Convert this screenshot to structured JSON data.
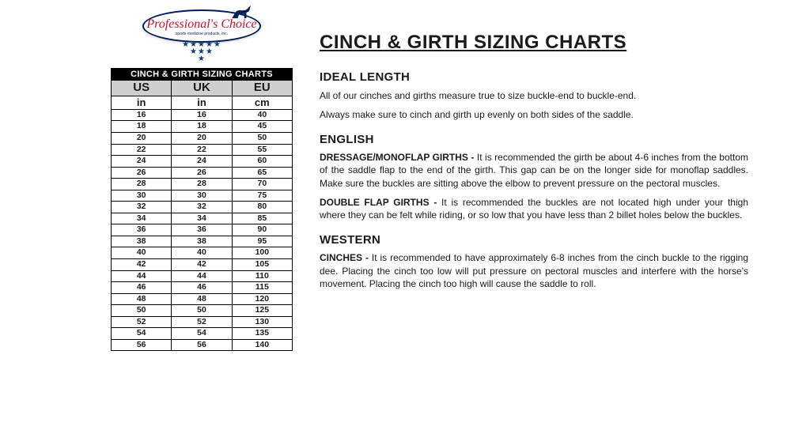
{
  "logo": {
    "brand": "Professional's Choice",
    "tagline": "sports medicine products, inc.",
    "brand_color": "#c8102e",
    "outline_color": "#001e5a"
  },
  "table": {
    "title": "CINCH & GIRTH SIZING CHARTS",
    "regions": [
      "US",
      "UK",
      "EU"
    ],
    "units": [
      "in",
      "in",
      "cm"
    ],
    "header_bg": "#000000",
    "header_fg": "#ffffff",
    "region_bg": "#cfcfcf",
    "rows": [
      [
        16,
        16,
        40
      ],
      [
        18,
        18,
        45
      ],
      [
        20,
        20,
        50
      ],
      [
        22,
        22,
        55
      ],
      [
        24,
        24,
        60
      ],
      [
        26,
        26,
        65
      ],
      [
        28,
        28,
        70
      ],
      [
        30,
        30,
        75
      ],
      [
        32,
        32,
        80
      ],
      [
        34,
        34,
        85
      ],
      [
        36,
        36,
        90
      ],
      [
        38,
        38,
        95
      ],
      [
        40,
        40,
        100
      ],
      [
        42,
        42,
        105
      ],
      [
        44,
        44,
        110
      ],
      [
        46,
        46,
        115
      ],
      [
        48,
        48,
        120
      ],
      [
        50,
        50,
        125
      ],
      [
        52,
        52,
        130
      ],
      [
        54,
        54,
        135
      ],
      [
        56,
        56,
        140
      ]
    ]
  },
  "content": {
    "title": "CINCH & GIRTH SIZING CHARTS",
    "ideal": {
      "heading": "IDEAL LENGTH",
      "p1": "All of our cinches and girths measure true to size buckle-end to buckle-end.",
      "p2": "Always make sure to cinch and girth up evenly on both sides of the saddle."
    },
    "english": {
      "heading": "ENGLISH",
      "dressage_lead": "DRESSAGE/MONOFLAP GIRTHS - ",
      "dressage_body": "It is recommended the girth be about 4-6 inches from the bottom of the saddle flap to the end of the girth.  This gap can be  on the longer side for monoflap saddles. Make sure the buckles are sitting above the elbow to prevent pressure on the pectoral muscles.",
      "double_lead": "DOUBLE FLAP GIRTHS - ",
      "double_body": "It is recommended the buckles are not located high under your thigh where they can be felt while riding, or so low that you have less than 2 billet holes below the buckles."
    },
    "western": {
      "heading": "WESTERN",
      "cinch_lead": "CINCHES - ",
      "cinch_body": "It is recommended to have approximately 6-8 inches from the cinch buckle to the rigging dee. Placing the cinch too low will put pressure on pectoral muscles and interfere with the horse's movement. Placing the cinch too high will cause the saddle to roll."
    }
  }
}
